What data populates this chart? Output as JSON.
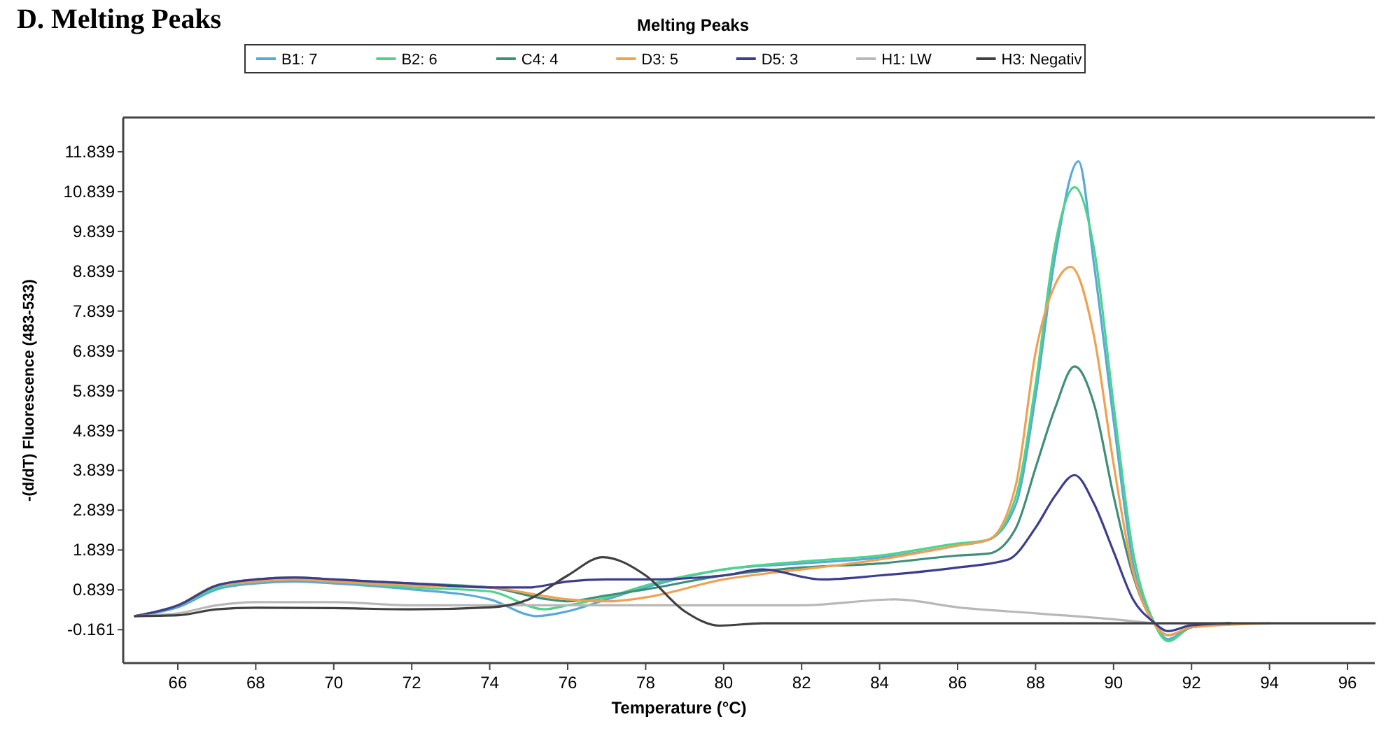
{
  "chart_data": {
    "type": "line",
    "title": "Melting Peaks",
    "xlabel": "Temperature (°C)",
    "ylabel": "-(d/dT) Fluorescence (483-533)",
    "annotations": [
      "D. Melting Peaks"
    ],
    "xlim": [
      64.6,
      96.7
    ],
    "xticks": [
      66,
      68,
      70,
      72,
      74,
      76,
      78,
      80,
      82,
      84,
      86,
      88,
      90,
      92,
      94,
      96
    ],
    "ylim": [
      -1.0,
      12.7
    ],
    "yticks": [
      -0.161,
      0.839,
      1.839,
      2.839,
      3.839,
      4.839,
      5.839,
      6.839,
      7.839,
      8.839,
      9.839,
      10.839,
      11.839
    ],
    "grid": false,
    "legend": "top",
    "marker": "none",
    "line_style": "solid",
    "series": [
      {
        "name": "B1: 7",
        "color": "#5aa8d8",
        "x": [
          64.9,
          66,
          67,
          68,
          69,
          70,
          72,
          74,
          75.2,
          76,
          77,
          78,
          80,
          82,
          84,
          86,
          86.8,
          87.5,
          88,
          88.5,
          89.1,
          89.5,
          90,
          90.5,
          91,
          91.4,
          92,
          93
        ],
        "values": [
          0.18,
          0.4,
          0.85,
          1.0,
          1.05,
          1.0,
          0.85,
          0.6,
          0.18,
          0.3,
          0.6,
          0.9,
          1.35,
          1.5,
          1.65,
          1.95,
          2.1,
          3.0,
          5.7,
          9.2,
          11.6,
          9.0,
          5.1,
          1.5,
          0.1,
          -0.4,
          -0.1,
          0.0
        ]
      },
      {
        "name": "B2: 6",
        "color": "#4cd48c",
        "x": [
          64.9,
          66,
          67,
          68,
          69,
          70,
          72,
          74,
          75.4,
          76,
          77,
          78,
          80,
          82,
          84,
          86,
          86.8,
          87.5,
          88,
          88.5,
          89,
          89.5,
          90,
          90.5,
          91,
          91.4,
          92,
          93
        ],
        "values": [
          0.18,
          0.45,
          0.9,
          1.05,
          1.1,
          1.05,
          0.9,
          0.8,
          0.35,
          0.45,
          0.65,
          0.95,
          1.35,
          1.55,
          1.7,
          2.0,
          2.1,
          3.2,
          6.0,
          9.5,
          10.95,
          9.4,
          5.5,
          1.8,
          0.1,
          -0.45,
          -0.1,
          0.0
        ]
      },
      {
        "name": "C4: 4",
        "color": "#3f8f78",
        "x": [
          64.9,
          66,
          67,
          68,
          69,
          70,
          72,
          74,
          75.5,
          76,
          77,
          78,
          80,
          82,
          84,
          86,
          86.8,
          87.5,
          88,
          88.5,
          89,
          89.5,
          90,
          90.5,
          91,
          91.4,
          92,
          93
        ],
        "values": [
          0.18,
          0.45,
          0.95,
          1.1,
          1.15,
          1.1,
          1.0,
          0.9,
          0.6,
          0.55,
          0.7,
          0.85,
          1.2,
          1.4,
          1.5,
          1.7,
          1.75,
          2.4,
          3.9,
          5.4,
          6.45,
          5.5,
          3.2,
          1.2,
          0.05,
          -0.3,
          -0.1,
          0.0
        ]
      },
      {
        "name": "D3: 5",
        "color": "#f0a050",
        "x": [
          64.9,
          66,
          67,
          68,
          69,
          70,
          72,
          74,
          75.3,
          76,
          77,
          78,
          80,
          82,
          84,
          86,
          86.8,
          87.5,
          88,
          88.5,
          88.9,
          89.5,
          90,
          90.5,
          91,
          91.4,
          92,
          94
        ],
        "values": [
          0.18,
          0.45,
          0.95,
          1.05,
          1.1,
          1.05,
          0.95,
          0.9,
          0.7,
          0.6,
          0.55,
          0.65,
          1.1,
          1.35,
          1.6,
          1.95,
          2.1,
          3.5,
          6.8,
          8.5,
          8.95,
          7.2,
          4.0,
          1.3,
          0.05,
          -0.3,
          -0.1,
          0.0
        ]
      },
      {
        "name": "D5: 3",
        "color": "#3c3c90",
        "x": [
          64.9,
          66,
          67,
          68,
          69,
          70,
          72,
          74,
          75,
          76,
          77,
          78,
          80,
          81,
          82.5,
          84,
          86,
          87.3,
          88,
          88.5,
          89,
          89.5,
          90,
          90.5,
          91,
          91.4,
          92,
          93
        ],
        "values": [
          0.18,
          0.45,
          0.95,
          1.1,
          1.15,
          1.1,
          1.0,
          0.9,
          0.9,
          1.05,
          1.1,
          1.1,
          1.2,
          1.35,
          1.1,
          1.2,
          1.4,
          1.6,
          2.4,
          3.2,
          3.72,
          3.0,
          1.8,
          0.6,
          0.05,
          -0.2,
          -0.05,
          0.0
        ]
      },
      {
        "name": "H1: LW",
        "color": "#b8b8b8",
        "x": [
          64.9,
          66,
          67,
          68,
          70,
          72,
          74,
          76,
          78,
          80,
          82,
          84.4,
          86,
          88,
          90,
          91
        ],
        "values": [
          0.18,
          0.25,
          0.45,
          0.53,
          0.53,
          0.45,
          0.45,
          0.45,
          0.45,
          0.45,
          0.45,
          0.6,
          0.4,
          0.25,
          0.1,
          0.0
        ]
      },
      {
        "name": "H3: Negativ",
        "color": "#404040",
        "x": [
          64.9,
          66,
          67,
          68,
          70,
          72,
          74,
          75,
          76,
          76.9,
          78,
          79,
          79.9,
          81,
          96.7
        ],
        "values": [
          0.18,
          0.2,
          0.35,
          0.39,
          0.38,
          0.35,
          0.4,
          0.6,
          1.2,
          1.66,
          1.2,
          0.3,
          -0.06,
          0.0,
          0.0
        ]
      }
    ]
  }
}
